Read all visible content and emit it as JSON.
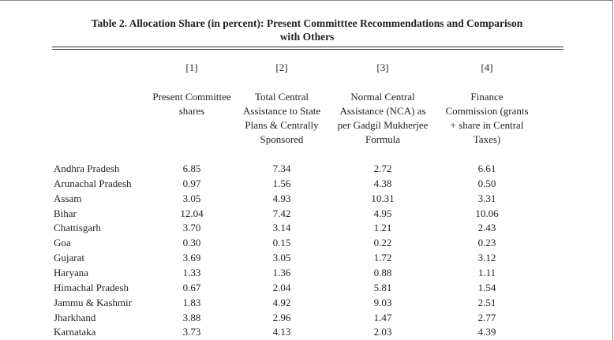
{
  "table": {
    "title": [
      "Table 2. Allocation Share (in percent): Present Committtee Recommendations and Comparison",
      "with Others"
    ],
    "column_numbers": [
      "[1]",
      "[2]",
      "[3]",
      "[4]"
    ],
    "column_headers": [
      [
        "Present Committee",
        "shares"
      ],
      [
        "Total Central",
        "Assistance to State",
        "Plans & Centrally",
        "Sponsored"
      ],
      [
        "Normal Central",
        "Assistance (NCA) as",
        "per Gadgil Mukherjee",
        "Formula"
      ],
      [
        "Finance",
        "Commission (grants",
        "+ share in Central",
        "Taxes)"
      ]
    ],
    "rows": [
      [
        "Andhra Pradesh",
        "6.85",
        "7.34",
        "2.72",
        "6.61"
      ],
      [
        "Arunachal Pradesh",
        "0.97",
        "1.56",
        "4.38",
        "0.50"
      ],
      [
        "Assam",
        "3.05",
        "4.93",
        "10.31",
        "3.31"
      ],
      [
        "Bihar",
        "12.04",
        "7.42",
        "4.95",
        "10.06"
      ],
      [
        "Chattisgarh",
        "3.70",
        "3.14",
        "1.21",
        "2.43"
      ],
      [
        "Goa",
        "0.30",
        "0.15",
        "0.22",
        "0.23"
      ],
      [
        "Gujarat",
        "3.69",
        "3.05",
        "1.72",
        "3.12"
      ],
      [
        "Haryana",
        "1.33",
        "1.36",
        "0.88",
        "1.11"
      ],
      [
        "Himachal Pradesh",
        "0.67",
        "2.04",
        "5.81",
        "1.54"
      ],
      [
        "Jammu & Kashmir",
        "1.83",
        "4.92",
        "9.03",
        "2.51"
      ],
      [
        "Jharkhand",
        "3.88",
        "2.96",
        "1.47",
        "2.77"
      ],
      [
        "Karnataka",
        "3.73",
        "4.13",
        "2.03",
        "4.39"
      ]
    ]
  }
}
